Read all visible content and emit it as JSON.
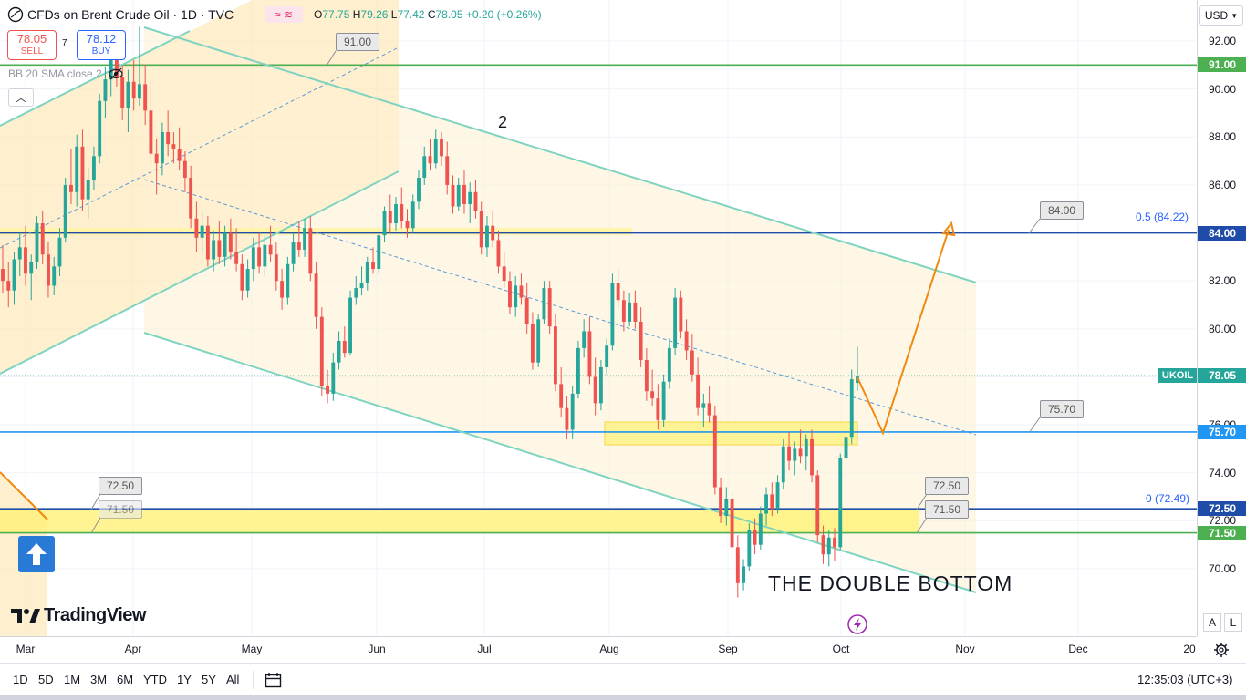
{
  "header": {
    "title": "CFDs on Brent Crude Oil · 1D · TVC",
    "ohlc": {
      "open_label": "O",
      "open": "77.75",
      "high_label": "H",
      "high": "79.26",
      "low_label": "L",
      "low": "77.42",
      "close_label": "C",
      "close": "78.05",
      "change": "+0.20 (+0.26%)"
    },
    "sell_price": "78.05",
    "sell_label": "SELL",
    "spread": "7",
    "buy_price": "78.12",
    "buy_label": "BUY",
    "indicator": "BB 20 SMA close 2",
    "currency": "USD"
  },
  "colors": {
    "up": "#26a69a",
    "down": "#ef5350",
    "channel": "#7fd4c1",
    "zone_fill": "#fde6b4",
    "support": "#fff176",
    "green_line": "#4caf50",
    "blue_line": "#1e4ca8",
    "arrow": "#f0890f"
  },
  "annotations": {
    "wave_label": "2",
    "pattern_label": "THE DOUBLE BOTTOM",
    "callouts": [
      "91.00",
      "84.00",
      "75.70",
      "72.50",
      "71.50",
      "72.50",
      "71.50"
    ],
    "fib_top": "0.5 (84.22)",
    "fib_bottom": "0 (72.49)"
  },
  "chart_data": {
    "type": "candlestick",
    "symbol": "UKOIL",
    "last_price": 78.05,
    "ylim": [
      68.5,
      93
    ],
    "yticks": [
      70,
      72,
      74,
      76,
      78,
      80,
      82,
      84,
      86,
      88,
      90,
      92
    ],
    "xticks": [
      "Mar",
      "Apr",
      "May",
      "Jun",
      "Jul",
      "Aug",
      "Sep",
      "Oct",
      "Nov",
      "Dec",
      "20"
    ],
    "levels": [
      {
        "price": 91.0,
        "label": "91.00",
        "color": "green"
      },
      {
        "price": 84.0,
        "label": "84.00",
        "color": "blue"
      },
      {
        "price": 75.7,
        "label": "75.70",
        "color": "blue"
      },
      {
        "price": 72.5,
        "label": "72.50",
        "color": "blue"
      },
      {
        "price": 71.5,
        "label": "71.50",
        "color": "green"
      }
    ],
    "candles": [
      [
        82.5,
        83.5,
        81.5,
        82.0
      ],
      [
        82.0,
        82.8,
        80.9,
        81.6
      ],
      [
        81.6,
        83.2,
        81.0,
        82.9
      ],
      [
        82.9,
        84.0,
        82.2,
        83.4
      ],
      [
        83.4,
        84.3,
        81.8,
        82.3
      ],
      [
        82.3,
        83.1,
        81.2,
        82.8
      ],
      [
        82.8,
        84.7,
        82.5,
        84.4
      ],
      [
        84.4,
        84.9,
        82.7,
        83.1
      ],
      [
        83.1,
        83.6,
        81.3,
        81.8
      ],
      [
        81.8,
        83.0,
        81.4,
        82.6
      ],
      [
        82.6,
        84.2,
        82.2,
        83.8
      ],
      [
        83.8,
        86.3,
        83.6,
        86.0
      ],
      [
        86.0,
        87.5,
        85.2,
        85.7
      ],
      [
        85.7,
        88.1,
        85.1,
        87.6
      ],
      [
        87.6,
        88.3,
        84.9,
        85.4
      ],
      [
        85.4,
        86.7,
        84.6,
        86.2
      ],
      [
        86.2,
        87.6,
        85.8,
        87.2
      ],
      [
        87.2,
        89.8,
        86.9,
        89.5
      ],
      [
        89.5,
        90.9,
        88.8,
        90.4
      ],
      [
        90.4,
        92.3,
        89.7,
        91.7
      ],
      [
        91.7,
        92.4,
        90.1,
        90.5
      ],
      [
        90.5,
        91.0,
        88.7,
        89.2
      ],
      [
        89.2,
        90.8,
        88.2,
        90.3
      ],
      [
        90.3,
        91.2,
        89.1,
        89.6
      ],
      [
        89.6,
        92.6,
        89.3,
        90.2
      ],
      [
        90.2,
        91.0,
        88.5,
        89.1
      ],
      [
        89.1,
        90.4,
        86.8,
        87.3
      ],
      [
        87.3,
        87.9,
        85.6,
        86.9
      ],
      [
        86.9,
        88.6,
        86.4,
        88.2
      ],
      [
        88.2,
        89.1,
        87.2,
        87.7
      ],
      [
        87.7,
        88.2,
        86.9,
        87.5
      ],
      [
        87.5,
        88.4,
        86.6,
        87.0
      ],
      [
        87.0,
        87.4,
        85.7,
        86.3
      ],
      [
        86.3,
        86.8,
        84.2,
        84.6
      ],
      [
        84.6,
        85.3,
        83.2,
        83.8
      ],
      [
        83.8,
        84.9,
        83.1,
        84.3
      ],
      [
        84.3,
        84.7,
        82.6,
        82.9
      ],
      [
        82.9,
        84.1,
        82.4,
        83.7
      ],
      [
        83.7,
        84.5,
        82.7,
        83.0
      ],
      [
        83.0,
        84.3,
        82.6,
        84.0
      ],
      [
        84.0,
        84.6,
        82.9,
        83.2
      ],
      [
        83.2,
        84.2,
        82.4,
        82.7
      ],
      [
        82.7,
        83.1,
        81.2,
        81.6
      ],
      [
        81.6,
        82.9,
        81.3,
        82.5
      ],
      [
        82.5,
        83.8,
        82.0,
        83.4
      ],
      [
        83.4,
        84.0,
        82.3,
        82.6
      ],
      [
        82.6,
        83.9,
        82.2,
        83.5
      ],
      [
        83.5,
        84.3,
        82.8,
        83.1
      ],
      [
        83.1,
        83.6,
        81.6,
        82.0
      ],
      [
        82.0,
        82.5,
        80.8,
        81.3
      ],
      [
        81.3,
        83.0,
        81.0,
        82.7
      ],
      [
        82.7,
        84.0,
        82.4,
        83.6
      ],
      [
        83.6,
        84.5,
        83.0,
        83.3
      ],
      [
        83.3,
        84.6,
        83.0,
        84.2
      ],
      [
        84.2,
        84.7,
        82.0,
        82.3
      ],
      [
        82.3,
        82.8,
        80.0,
        80.5
      ],
      [
        80.5,
        80.9,
        77.2,
        77.6
      ],
      [
        77.6,
        78.3,
        76.9,
        77.3
      ],
      [
        77.3,
        79.0,
        77.0,
        78.6
      ],
      [
        78.6,
        79.9,
        78.3,
        79.5
      ],
      [
        79.5,
        80.1,
        78.8,
        79.0
      ],
      [
        79.0,
        81.6,
        78.9,
        81.3
      ],
      [
        81.3,
        82.2,
        81.0,
        81.7
      ],
      [
        81.7,
        82.6,
        81.4,
        81.9
      ],
      [
        81.9,
        83.0,
        81.6,
        82.8
      ],
      [
        82.8,
        83.4,
        82.3,
        82.5
      ],
      [
        82.5,
        84.1,
        82.3,
        83.9
      ],
      [
        83.9,
        85.1,
        83.6,
        84.9
      ],
      [
        84.9,
        85.6,
        84.0,
        84.4
      ],
      [
        84.4,
        85.5,
        84.1,
        85.2
      ],
      [
        85.2,
        85.9,
        84.2,
        84.5
      ],
      [
        84.5,
        85.0,
        83.8,
        84.2
      ],
      [
        84.2,
        85.6,
        84.0,
        85.3
      ],
      [
        85.3,
        86.6,
        85.0,
        86.3
      ],
      [
        86.3,
        87.6,
        86.0,
        87.2
      ],
      [
        87.2,
        87.9,
        86.6,
        86.9
      ],
      [
        86.9,
        88.3,
        86.7,
        87.9
      ],
      [
        87.9,
        88.2,
        86.8,
        87.2
      ],
      [
        87.2,
        87.8,
        85.6,
        86.0
      ],
      [
        86.0,
        86.4,
        84.8,
        85.1
      ],
      [
        85.1,
        86.3,
        84.9,
        86.0
      ],
      [
        86.0,
        86.6,
        84.8,
        85.2
      ],
      [
        85.2,
        86.1,
        84.4,
        85.7
      ],
      [
        85.7,
        86.2,
        84.6,
        84.9
      ],
      [
        84.9,
        85.3,
        83.1,
        83.4
      ],
      [
        83.4,
        84.7,
        83.0,
        84.3
      ],
      [
        84.3,
        84.9,
        83.4,
        83.7
      ],
      [
        83.7,
        84.1,
        82.3,
        82.6
      ],
      [
        82.6,
        83.2,
        81.7,
        82.0
      ],
      [
        82.0,
        82.4,
        80.6,
        80.9
      ],
      [
        80.9,
        82.2,
        80.5,
        81.8
      ],
      [
        81.8,
        82.3,
        81.0,
        81.3
      ],
      [
        81.3,
        81.9,
        79.8,
        80.2
      ],
      [
        80.2,
        80.7,
        78.3,
        78.6
      ],
      [
        78.6,
        80.6,
        78.4,
        80.4
      ],
      [
        80.4,
        82.0,
        80.2,
        81.7
      ],
      [
        81.7,
        82.0,
        79.8,
        80.1
      ],
      [
        80.1,
        80.6,
        77.4,
        77.7
      ],
      [
        77.7,
        78.4,
        76.3,
        76.7
      ],
      [
        76.7,
        77.2,
        75.4,
        75.8
      ],
      [
        75.8,
        77.6,
        75.4,
        77.3
      ],
      [
        77.3,
        79.5,
        77.1,
        79.2
      ],
      [
        79.2,
        80.4,
        78.8,
        79.9
      ],
      [
        79.9,
        80.5,
        77.7,
        78.0
      ],
      [
        78.0,
        78.8,
        76.4,
        76.9
      ],
      [
        76.9,
        78.7,
        76.6,
        78.4
      ],
      [
        78.4,
        79.6,
        78.1,
        79.3
      ],
      [
        79.3,
        82.3,
        79.1,
        81.9
      ],
      [
        81.9,
        82.5,
        80.9,
        81.2
      ],
      [
        81.2,
        81.6,
        79.9,
        80.3
      ],
      [
        80.3,
        81.5,
        80.1,
        81.1
      ],
      [
        81.1,
        81.6,
        80.0,
        80.3
      ],
      [
        80.3,
        80.9,
        78.4,
        78.7
      ],
      [
        78.7,
        79.2,
        77.0,
        77.4
      ],
      [
        77.4,
        78.3,
        76.8,
        77.1
      ],
      [
        77.1,
        77.7,
        75.8,
        76.2
      ],
      [
        76.2,
        78.1,
        75.9,
        77.8
      ],
      [
        77.8,
        79.6,
        77.5,
        79.2
      ],
      [
        79.2,
        81.7,
        78.9,
        81.3
      ],
      [
        81.3,
        81.6,
        79.6,
        79.9
      ],
      [
        79.9,
        80.4,
        78.7,
        79.1
      ],
      [
        79.1,
        79.8,
        77.8,
        78.1
      ],
      [
        78.1,
        78.8,
        76.4,
        76.7
      ],
      [
        76.7,
        77.3,
        75.9,
        76.9
      ],
      [
        76.9,
        77.6,
        76.1,
        76.4
      ],
      [
        76.4,
        76.8,
        73.1,
        73.4
      ],
      [
        73.4,
        73.8,
        71.9,
        72.2
      ],
      [
        72.2,
        73.4,
        71.8,
        72.9
      ],
      [
        72.9,
        73.2,
        70.6,
        70.9
      ],
      [
        70.9,
        71.4,
        68.8,
        69.4
      ],
      [
        69.4,
        70.4,
        69.1,
        70.1
      ],
      [
        70.1,
        71.9,
        69.9,
        71.6
      ],
      [
        71.6,
        72.1,
        70.6,
        71.0
      ],
      [
        71.0,
        72.6,
        70.8,
        72.3
      ],
      [
        72.3,
        73.4,
        71.8,
        73.1
      ],
      [
        73.1,
        73.6,
        72.2,
        72.5
      ],
      [
        72.5,
        73.9,
        72.3,
        73.6
      ],
      [
        73.6,
        75.4,
        73.3,
        75.1
      ],
      [
        75.1,
        75.7,
        74.1,
        74.5
      ],
      [
        74.5,
        75.3,
        73.9,
        75.0
      ],
      [
        75.0,
        75.8,
        74.4,
        74.7
      ],
      [
        74.7,
        75.6,
        74.1,
        75.4
      ],
      [
        75.4,
        75.8,
        73.6,
        73.9
      ],
      [
        73.9,
        74.1,
        71.1,
        71.4
      ],
      [
        71.4,
        71.8,
        70.2,
        70.6
      ],
      [
        70.6,
        71.6,
        70.1,
        71.3
      ],
      [
        71.3,
        71.7,
        70.3,
        70.9
      ],
      [
        70.9,
        74.8,
        70.8,
        74.6
      ],
      [
        74.6,
        75.9,
        74.3,
        75.5
      ],
      [
        75.5,
        78.3,
        75.2,
        77.9
      ],
      [
        77.75,
        79.26,
        77.42,
        78.05
      ]
    ]
  },
  "time_axis_labels": [
    "Mar",
    "Apr",
    "May",
    "Jun",
    "Jul",
    "Aug",
    "Sep",
    "Oct",
    "Nov",
    "Dec",
    "20"
  ],
  "price_labels": {
    "p91": "91.00",
    "p84": "84.00",
    "last": "78.05",
    "last_symbol": "UKOIL",
    "p757": "75.70",
    "p725": "72.50",
    "p715": "71.50"
  },
  "ranges": [
    "1D",
    "5D",
    "1M",
    "3M",
    "6M",
    "YTD",
    "1Y",
    "5Y",
    "All"
  ],
  "clock": "12:35:03 (UTC+3)",
  "brand": "TradingView",
  "scale_buttons": {
    "auto": "A",
    "log": "L"
  }
}
